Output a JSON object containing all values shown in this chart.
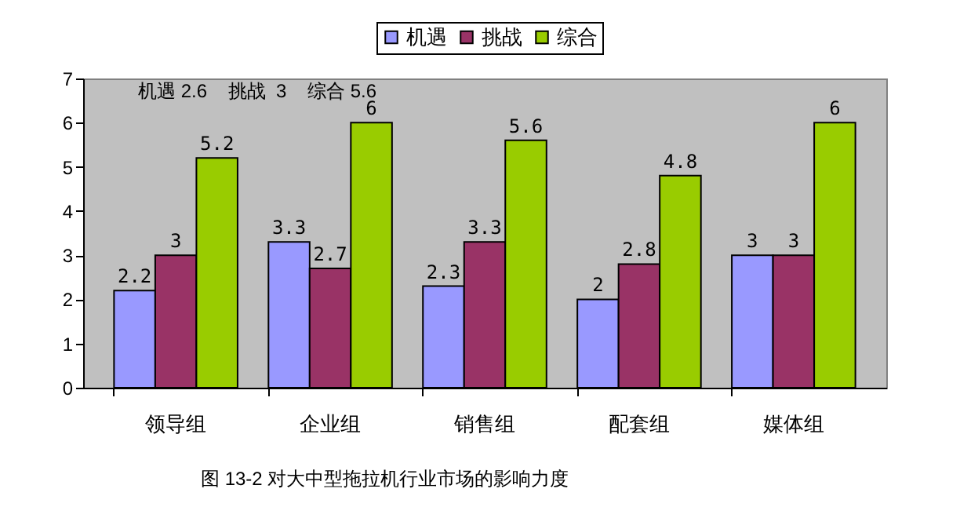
{
  "chart_data": {
    "type": "bar",
    "categories": [
      "领导组",
      "企业组",
      "销售组",
      "配套组",
      "媒体组"
    ],
    "series": [
      {
        "name": "机遇",
        "color": "#9999ff",
        "values": [
          2.2,
          3.3,
          2.3,
          2,
          3
        ]
      },
      {
        "name": "挑战",
        "color": "#993366",
        "values": [
          3,
          2.7,
          3.3,
          2.8,
          3
        ]
      },
      {
        "name": "综合",
        "color": "#99cc00",
        "values": [
          5.2,
          6,
          5.6,
          4.8,
          6
        ]
      }
    ],
    "ylim": [
      0,
      7
    ],
    "yticks": [
      0,
      1,
      2,
      3,
      4,
      5,
      6,
      7
    ],
    "annotations": [
      "机遇 2.6    挑战  3    综合 5.6",
      "图 13-2 对大中型拖拉机行业市场的影响力度"
    ],
    "data_labels": true,
    "grid": false,
    "legend": "top"
  }
}
